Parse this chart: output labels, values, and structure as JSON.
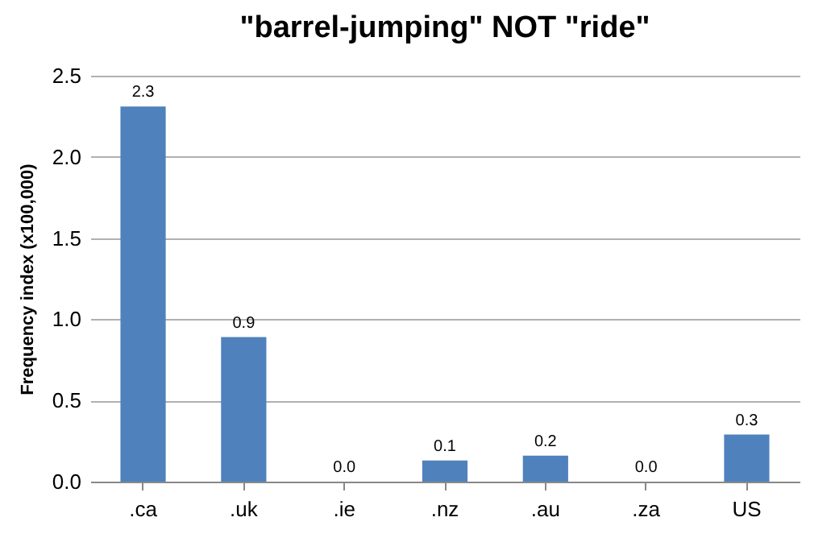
{
  "chart_data": {
    "type": "bar",
    "title": "\"barrel-jumping\" NOT \"ride\"",
    "ylabel": "Frequency index (x100,000)",
    "categories": [
      ".ca",
      ".uk",
      ".ie",
      ".nz",
      ".au",
      ".za",
      "US"
    ],
    "values": [
      2.31,
      0.89,
      0,
      0.13,
      0.16,
      0,
      0.29
    ],
    "value_labels": [
      "2.3",
      "0.9",
      "0.0",
      "0.1",
      "0.2",
      "0.0",
      "0.3"
    ],
    "color": "#4f81bd",
    "ylim": [
      0,
      2.5
    ],
    "yticks": [
      {
        "value": 0,
        "label": "0.0"
      },
      {
        "value": 0.5,
        "label": "0.5"
      },
      {
        "value": 1,
        "label": "1.0"
      },
      {
        "value": 1.5,
        "label": "1.5"
      },
      {
        "value": 2,
        "label": "2.0"
      },
      {
        "value": 2.5,
        "label": "2.5"
      }
    ],
    "grid": "y"
  }
}
